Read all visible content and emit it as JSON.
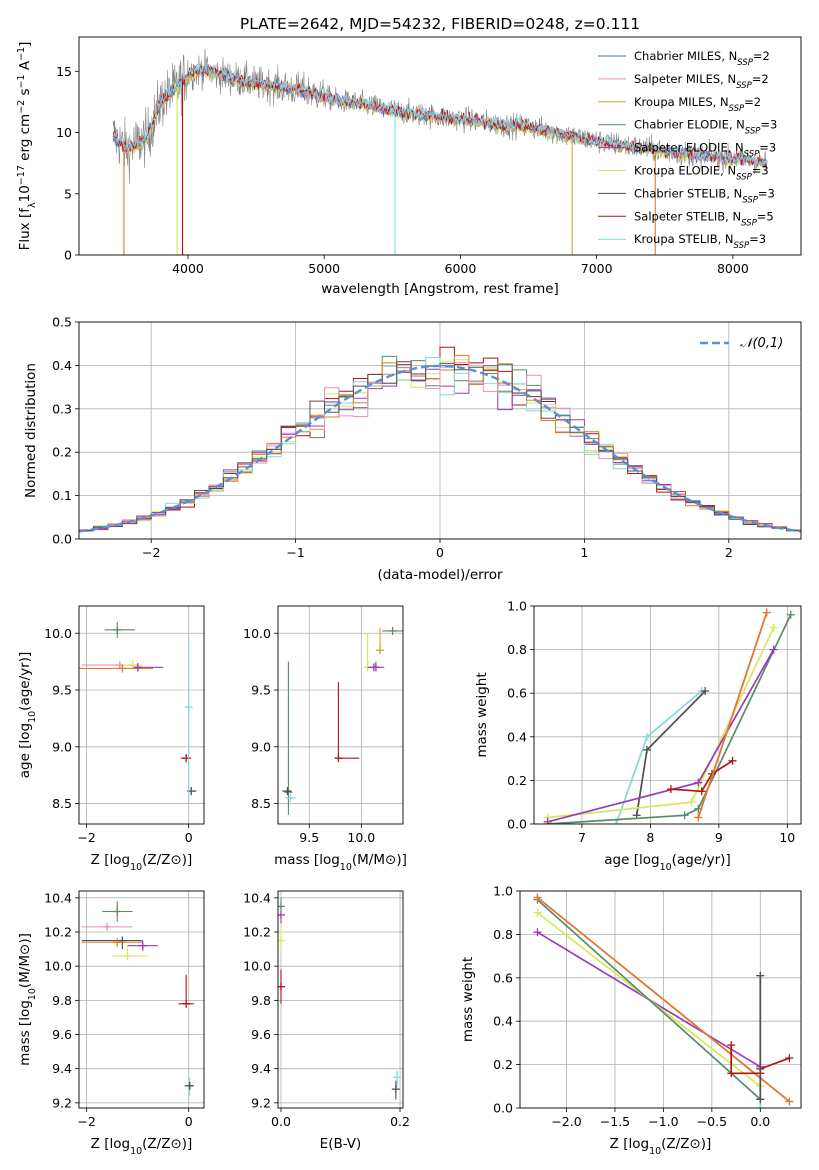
{
  "figure_title": "PLATE=2642, MJD=54232, FIBERID=0248, z=0.111",
  "colors": {
    "chabrier_miles": "#4a6fd0",
    "salpeter_miles": "#e38fbf",
    "kroupa_miles": "#c6a83a",
    "chabrier_elodie": "#5b8a67",
    "salpeter_elodie": "#9b3bb8",
    "kroupa_elodie": "#d4e85a",
    "chabrier_stelib": "#505050",
    "salpeter_stelib": "#b01414",
    "kroupa_stelib": "#82d9dc",
    "gaussian": "#5b8fd6",
    "orange": "#e07a2a",
    "grid": "#b0b0b0"
  },
  "chart_data": [
    {
      "id": "spectrum",
      "type": "line",
      "xlabel": "wavelength [Angstrom, rest frame]",
      "ylabel": "Flux [f_λ10^-17 erg cm^-2 s^-1 A^-1]",
      "xlim": [
        3200,
        8500
      ],
      "ylim": [
        0,
        17.8
      ],
      "xticks": [
        4000,
        5000,
        6000,
        7000,
        8000
      ],
      "yticks": [
        0,
        5,
        10,
        15
      ],
      "grid": false,
      "legend_position": "top-right",
      "legend": [
        {
          "label": "Chabrier MILES, N_SSP=2",
          "color_key": "chabrier_miles"
        },
        {
          "label": "Salpeter MILES, N_SSP=2",
          "color_key": "salpeter_miles"
        },
        {
          "label": "Kroupa MILES, N_SSP=2",
          "color_key": "kroupa_miles"
        },
        {
          "label": "Chabrier ELODIE, N_SSP=3",
          "color_key": "chabrier_elodie"
        },
        {
          "label": "Salpeter ELODIE, N_SSP=3",
          "color_key": "salpeter_elodie"
        },
        {
          "label": "Kroupa ELODIE, N_SSP=3",
          "color_key": "kroupa_elodie"
        },
        {
          "label": "Chabrier STELIB, N_SSP=3",
          "color_key": "chabrier_stelib"
        },
        {
          "label": "Salpeter STELIB, N_SSP=5",
          "color_key": "salpeter_stelib"
        },
        {
          "label": "Kroupa STELIB, N_SSP=3",
          "color_key": "kroupa_stelib"
        }
      ],
      "continuum": [
        [
          3450,
          9.8
        ],
        [
          3550,
          8.6
        ],
        [
          3700,
          9.6
        ],
        [
          3800,
          12.5
        ],
        [
          3900,
          13.5
        ],
        [
          4000,
          14.8
        ],
        [
          4100,
          15.2
        ],
        [
          4300,
          14.5
        ],
        [
          4500,
          14.0
        ],
        [
          4700,
          13.7
        ],
        [
          4900,
          13.3
        ],
        [
          5100,
          12.6
        ],
        [
          5300,
          12.3
        ],
        [
          5500,
          11.8
        ],
        [
          5700,
          11.5
        ],
        [
          5900,
          11.2
        ],
        [
          6100,
          11.0
        ],
        [
          6300,
          10.6
        ],
        [
          6500,
          10.5
        ],
        [
          6700,
          10.0
        ],
        [
          6900,
          9.5
        ],
        [
          7100,
          9.1
        ],
        [
          7300,
          8.8
        ],
        [
          7500,
          8.5
        ],
        [
          7700,
          8.2
        ],
        [
          7900,
          8.0
        ],
        [
          8100,
          7.8
        ],
        [
          8250,
          7.5
        ]
      ],
      "data_range": [
        3450,
        8250
      ]
    },
    {
      "id": "residuals",
      "type": "step",
      "xlabel": "(data-model)/error",
      "ylabel": "Normed distribution",
      "xlim": [
        -2.5,
        2.5
      ],
      "ylim": [
        0,
        0.5
      ],
      "xticks": [
        -2,
        -1,
        0,
        1,
        2
      ],
      "yticks": [
        0.0,
        0.1,
        0.2,
        0.3,
        0.4,
        0.5
      ],
      "grid": true,
      "legend_position": "top-right",
      "legend_label": "𝒩(0,1)",
      "bin_width": 0.1
    },
    {
      "id": "age_vs_Z",
      "type": "errorbar",
      "xlabel": "Z [log10(Z/Z⊙)]",
      "ylabel": "age  [log10(age/yr)]",
      "xlim": [
        -2.15,
        0.3
      ],
      "ylim": [
        8.32,
        10.24
      ],
      "xticks": [
        -2,
        0
      ],
      "yticks": [
        8.5,
        9.0,
        9.5,
        10.0
      ],
      "grid": true,
      "points": [
        {
          "c": "chabrier_elodie",
          "x": -1.4,
          "y": 10.03,
          "xe": [
            0.25,
            0.35
          ],
          "ye": [
            0.07,
            0.07
          ]
        },
        {
          "c": "salpeter_miles",
          "x": -1.35,
          "y": 9.72,
          "xe": [
            0.75,
            0.25
          ],
          "ye": [
            0.03,
            0.03
          ]
        },
        {
          "c": "kroupa_elodie",
          "x": -1.1,
          "y": 9.72,
          "xe": [
            0.2,
            0.2
          ],
          "ye": [
            0.04,
            0.04
          ]
        },
        {
          "c": "salpeter_elodie",
          "x": -1.0,
          "y": 9.7,
          "xe": [
            0.0,
            0.5
          ],
          "ye": [
            0.0,
            0.0
          ]
        },
        {
          "c": "orange",
          "x": -1.3,
          "y": 9.69,
          "xe": [
            0.9,
            0.6
          ],
          "ye": [
            0.0,
            0.0
          ]
        },
        {
          "c": "salpeter_elodie",
          "x": -1.0,
          "y": 9.7,
          "xe": [
            0.0,
            0.0
          ],
          "ye": [
            0.0,
            0.02
          ]
        },
        {
          "c": "chabrier_stelib",
          "x": 0.05,
          "y": 8.61,
          "xe": [
            0.05,
            0.1
          ],
          "ye": [
            0.0,
            0.0
          ]
        },
        {
          "c": "salpeter_stelib",
          "x": -0.05,
          "y": 8.9,
          "xe": [
            0.1,
            0.1
          ],
          "ye": [
            0.0,
            0.0
          ]
        },
        {
          "c": "kroupa_stelib",
          "x": 0.0,
          "y": 9.35,
          "xe": [
            0.0,
            0.0
          ],
          "ye": [
            0.85,
            0.6
          ]
        }
      ]
    },
    {
      "id": "age_vs_mass",
      "type": "errorbar",
      "xlabel": "mass [log10(M/M⊙)]",
      "ylabel": "",
      "xlim": [
        9.2,
        10.4
      ],
      "ylim": [
        8.32,
        10.24
      ],
      "xticks": [
        9.5,
        10.0
      ],
      "yticks": [
        8.5,
        9.0,
        9.5,
        10.0
      ],
      "grid": true,
      "points": [
        {
          "c": "chabrier_elodie",
          "x": 9.3,
          "y": 8.6,
          "xe": [
            0.0,
            0.0
          ],
          "ye": [
            0.2,
            1.15
          ]
        },
        {
          "c": "chabrier_stelib",
          "x": 9.29,
          "y": 8.61,
          "xe": [
            0.05,
            0.04
          ],
          "ye": [
            0.0,
            0.0
          ]
        },
        {
          "c": "kroupa_stelib",
          "x": 9.32,
          "y": 8.55,
          "xe": [
            0.05,
            0.05
          ],
          "ye": [
            0.0,
            0.0
          ]
        },
        {
          "c": "salpeter_stelib",
          "x": 9.78,
          "y": 8.9,
          "xe": [
            0.0,
            0.2
          ],
          "ye": [
            0.0,
            0.67
          ]
        },
        {
          "c": "chabrier_elodie",
          "x": 10.3,
          "y": 10.02,
          "xe": [
            0.1,
            0.1
          ],
          "ye": [
            0.0,
            0.0
          ]
        },
        {
          "c": "kroupa_elodie",
          "x": 10.06,
          "y": 9.7,
          "xe": [
            0.0,
            0.0
          ],
          "ye": [
            0.0,
            0.3
          ]
        },
        {
          "c": "salpeter_elodie",
          "x": 10.12,
          "y": 9.7,
          "xe": [
            0.06,
            0.1
          ],
          "ye": [
            0.0,
            0.0
          ]
        },
        {
          "c": "salpeter_elodie",
          "x": 10.14,
          "y": 9.7,
          "xe": [
            0.0,
            0.0
          ],
          "ye": [
            0.0,
            0.05
          ]
        },
        {
          "c": "kroupa_miles",
          "x": 10.18,
          "y": 9.85,
          "xe": [
            0.0,
            0.0
          ],
          "ye": [
            0.0,
            0.2
          ]
        }
      ]
    },
    {
      "id": "weight_vs_age",
      "type": "line",
      "xlabel": "age  [log10(age/yr)]",
      "ylabel": "mass weight",
      "xlim": [
        6.3,
        10.2
      ],
      "ylim": [
        0.0,
        1.0
      ],
      "xticks": [
        7,
        8,
        9,
        10
      ],
      "yticks": [
        0.0,
        0.2,
        0.4,
        0.6,
        0.8,
        1.0
      ],
      "grid": true,
      "series": [
        {
          "c": "kroupa_stelib",
          "x": [
            7.5,
            7.95,
            8.75
          ],
          "y": [
            0.0,
            0.4,
            0.61
          ]
        },
        {
          "c": "chabrier_stelib",
          "x": [
            7.8,
            7.95,
            8.8
          ],
          "y": [
            0.04,
            0.34,
            0.61
          ]
        },
        {
          "c": "chabrier_elodie",
          "x": [
            6.5,
            8.5,
            8.7,
            10.05
          ],
          "y": [
            0.0,
            0.04,
            0.07,
            0.96
          ]
        },
        {
          "c": "kroupa_elodie",
          "x": [
            6.5,
            8.6,
            9.8
          ],
          "y": [
            0.03,
            0.1,
            0.9
          ]
        },
        {
          "c": "salpeter_elodie",
          "x": [
            6.5,
            8.7,
            9.8
          ],
          "y": [
            0.01,
            0.19,
            0.8
          ]
        },
        {
          "c": "salpeter_stelib",
          "x": [
            8.3,
            8.75,
            8.9,
            9.2
          ],
          "y": [
            0.16,
            0.15,
            0.23,
            0.29
          ]
        },
        {
          "c": "salpeter_miles",
          "x": [
            8.7,
            9.7
          ],
          "y": [
            0.03,
            0.97
          ]
        },
        {
          "c": "orange",
          "x": [
            8.7,
            9.7
          ],
          "y": [
            0.03,
            0.97
          ]
        }
      ]
    },
    {
      "id": "mass_vs_Z",
      "type": "errorbar",
      "xlabel": "Z [log10(Z/Z⊙)]",
      "ylabel": "mass [log10(M/M⊙)]",
      "xlim": [
        -2.15,
        0.3
      ],
      "ylim": [
        9.17,
        10.44
      ],
      "xticks": [
        -2,
        0
      ],
      "yticks": [
        9.2,
        9.4,
        9.6,
        9.8,
        10.0,
        10.2,
        10.4
      ],
      "grid": true,
      "points": [
        {
          "c": "chabrier_elodie",
          "x": -1.4,
          "y": 10.32,
          "xe": [
            0.3,
            0.3
          ],
          "ye": [
            0.06,
            0.06
          ]
        },
        {
          "c": "salpeter_miles",
          "x": -1.6,
          "y": 10.23,
          "xe": [
            0.5,
            0.5
          ],
          "ye": [
            0.0,
            0.0
          ]
        },
        {
          "c": "chabrier_stelib",
          "x": -1.3,
          "y": 10.15,
          "xe": [
            0.8,
            0.4
          ],
          "ye": [
            0.05,
            0.0
          ]
        },
        {
          "c": "orange",
          "x": -1.4,
          "y": 10.14,
          "xe": [
            0.7,
            0.5
          ],
          "ye": [
            0.0,
            0.0
          ]
        },
        {
          "c": "salpeter_elodie",
          "x": -0.9,
          "y": 10.12,
          "xe": [
            0.3,
            0.3
          ],
          "ye": [
            0.03,
            0.03
          ]
        },
        {
          "c": "kroupa_elodie",
          "x": -1.2,
          "y": 10.06,
          "xe": [
            0.3,
            0.4
          ],
          "ye": [
            0.0,
            0.06
          ]
        },
        {
          "c": "salpeter_stelib",
          "x": -0.05,
          "y": 9.78,
          "xe": [
            0.15,
            0.15
          ],
          "ye": [
            0.0,
            0.17
          ]
        },
        {
          "c": "kroupa_stelib",
          "x": 0.02,
          "y": 9.3,
          "xe": [
            0.05,
            0.05
          ],
          "ye": [
            0.06,
            0.05
          ]
        },
        {
          "c": "chabrier_stelib",
          "x": 0.02,
          "y": 9.3,
          "xe": [
            0.1,
            0.05
          ],
          "ye": [
            0.0,
            0.0
          ]
        }
      ]
    },
    {
      "id": "mass_vs_ebv",
      "type": "errorbar",
      "xlabel": "E(B-V)",
      "ylabel": "",
      "xlim": [
        -0.005,
        0.205
      ],
      "ylim": [
        9.17,
        10.44
      ],
      "xticks": [
        0.0,
        0.2
      ],
      "yticks": [
        9.2,
        9.4,
        9.6,
        9.8,
        10.0,
        10.2,
        10.4
      ],
      "grid": true,
      "points": [
        {
          "c": "chabrier_elodie",
          "x": 0.0,
          "y": 10.35,
          "xe": [
            0,
            0
          ],
          "ye": [
            0.05,
            0.05
          ]
        },
        {
          "c": "salpeter_elodie",
          "x": 0.0,
          "y": 10.3,
          "xe": [
            0,
            0
          ],
          "ye": [
            0.05,
            0.0
          ]
        },
        {
          "c": "kroupa_elodie",
          "x": 0.0,
          "y": 10.15,
          "xe": [
            0,
            0
          ],
          "ye": [
            0.05,
            0.1
          ]
        },
        {
          "c": "salpeter_stelib",
          "x": 0.0,
          "y": 9.88,
          "xe": [
            0,
            0
          ],
          "ye": [
            0.1,
            0.1
          ]
        },
        {
          "c": "kroupa_stelib",
          "x": 0.195,
          "y": 9.35,
          "xe": [
            0,
            0
          ],
          "ye": [
            0.06,
            0.04
          ]
        },
        {
          "c": "chabrier_stelib",
          "x": 0.193,
          "y": 9.28,
          "xe": [
            0,
            0
          ],
          "ye": [
            0.06,
            0.05
          ]
        }
      ]
    },
    {
      "id": "weight_vs_Z",
      "type": "line",
      "xlabel": "Z [log10(Z/Z⊙)]",
      "ylabel": "mass weight",
      "xlim": [
        -2.48,
        0.42
      ],
      "ylim": [
        0.0,
        1.0
      ],
      "xticks": [
        -2.0,
        -1.5,
        -1.0,
        -0.5,
        0.0
      ],
      "yticks": [
        0.0,
        0.2,
        0.4,
        0.6,
        0.8,
        1.0
      ],
      "grid": true,
      "series": [
        {
          "c": "salpeter_elodie",
          "x": [
            -2.3,
            0.0
          ],
          "y": [
            0.81,
            0.19
          ]
        },
        {
          "c": "kroupa_elodie",
          "x": [
            -2.3,
            0.0
          ],
          "y": [
            0.9,
            0.1
          ]
        },
        {
          "c": "chabrier_elodie",
          "x": [
            -2.3,
            0.0
          ],
          "y": [
            0.96,
            0.04
          ]
        },
        {
          "c": "salpeter_miles",
          "x": [
            -2.3,
            0.3
          ],
          "y": [
            0.97,
            0.03
          ]
        },
        {
          "c": "orange",
          "x": [
            -2.3,
            0.3
          ],
          "y": [
            0.97,
            0.03
          ]
        },
        {
          "c": "salpeter_stelib",
          "x": [
            -0.3,
            -0.3,
            0.0,
            0.0,
            0.3
          ],
          "y": [
            0.29,
            0.16,
            0.16,
            0.18,
            0.23
          ]
        },
        {
          "c": "kroupa_stelib",
          "x": [
            0.0,
            0.0
          ],
          "y": [
            0.0,
            0.61
          ]
        },
        {
          "c": "chabrier_stelib",
          "x": [
            0.0,
            0.0
          ],
          "y": [
            0.04,
            0.61
          ]
        }
      ]
    }
  ]
}
